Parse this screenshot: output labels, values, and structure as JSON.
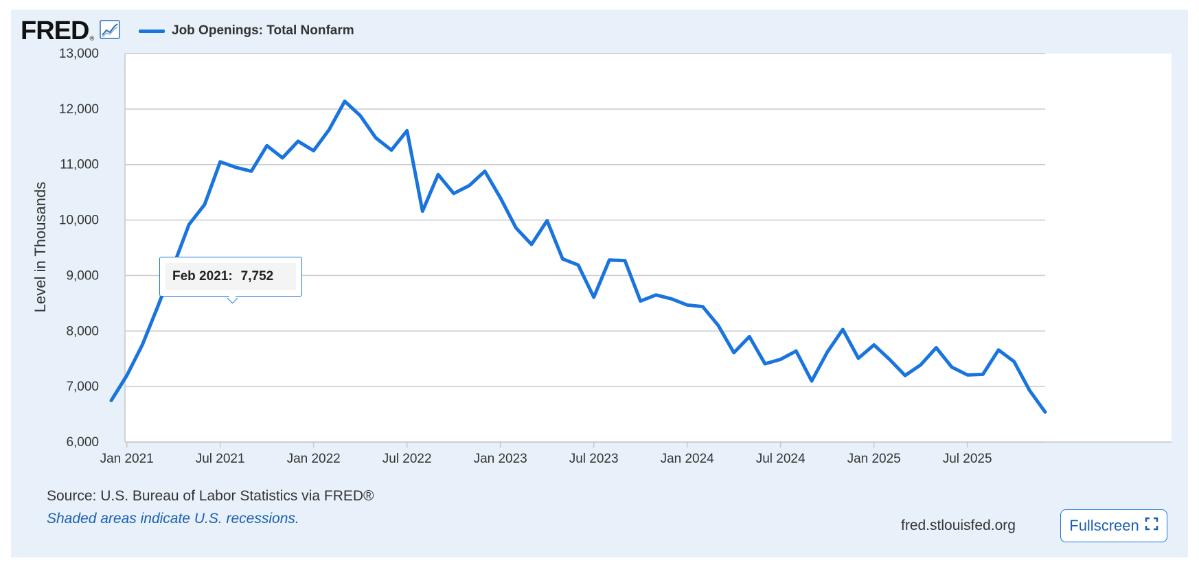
{
  "header": {
    "logo_text": "FRED",
    "logo_reg": "®",
    "legend_label": "Job Openings: Total Nonfarm"
  },
  "colors": {
    "series": "#1a74dd",
    "panel": "#e8f1f9",
    "grid": "#c8c8c8"
  },
  "icons": {
    "logo": "chart-line-icon",
    "fullscreen": "expand-icon"
  },
  "tooltip": {
    "label": "Feb 2021:",
    "value": "7,752"
  },
  "footer": {
    "source": "Source: U.S. Bureau of Labor Statistics via FRED®",
    "recession_note": "Shaded areas indicate U.S. recessions.",
    "site": "fred.stlouisfed.org",
    "fullscreen_label": "Fullscreen"
  },
  "chart_data": {
    "type": "line",
    "ylabel": "Level in Thousands",
    "ylim": [
      6000,
      13000
    ],
    "yticks": [
      6000,
      7000,
      8000,
      9000,
      10000,
      11000,
      12000,
      13000
    ],
    "ytick_labels": [
      "6,000",
      "7,000",
      "8,000",
      "9,000",
      "10,000",
      "11,000",
      "12,000",
      "13,000"
    ],
    "xlim": [
      "2020-12",
      "2025-12"
    ],
    "xticks": [
      "2021-01",
      "2021-07",
      "2022-01",
      "2022-07",
      "2023-01",
      "2023-07",
      "2024-01",
      "2024-07",
      "2025-01",
      "2025-07"
    ],
    "xtick_labels": [
      "Jan 2021",
      "Jul 2021",
      "Jan 2022",
      "Jul 2022",
      "Jan 2023",
      "Jul 2023",
      "Jan 2024",
      "Jul 2024",
      "Jan 2025",
      "Jul 2025"
    ],
    "grid": true,
    "series": [
      {
        "name": "Job Openings: Total Nonfarm",
        "x": [
          "2020-12",
          "2021-01",
          "2021-02",
          "2021-03",
          "2021-04",
          "2021-05",
          "2021-06",
          "2021-07",
          "2021-08",
          "2021-09",
          "2021-10",
          "2021-11",
          "2021-12",
          "2022-01",
          "2022-02",
          "2022-03",
          "2022-04",
          "2022-05",
          "2022-06",
          "2022-07",
          "2022-08",
          "2022-09",
          "2022-10",
          "2022-11",
          "2022-12",
          "2023-01",
          "2023-02",
          "2023-03",
          "2023-04",
          "2023-05",
          "2023-06",
          "2023-07",
          "2023-08",
          "2023-09",
          "2023-10",
          "2023-11",
          "2023-12",
          "2024-01",
          "2024-02",
          "2024-03",
          "2024-04",
          "2024-05",
          "2024-06",
          "2024-07",
          "2024-08",
          "2024-09",
          "2024-10",
          "2024-11",
          "2024-12",
          "2025-01",
          "2025-02",
          "2025-03",
          "2025-04",
          "2025-05",
          "2025-06",
          "2025-07",
          "2025-08",
          "2025-09",
          "2025-10",
          "2025-11",
          "2025-12"
        ],
        "values": [
          6750,
          7200,
          7752,
          8450,
          9180,
          9920,
          10280,
          11050,
          10950,
          10880,
          11340,
          11120,
          11420,
          11250,
          11630,
          12140,
          11880,
          11480,
          11260,
          11610,
          10160,
          10820,
          10480,
          10620,
          10880,
          10400,
          9860,
          9560,
          9990,
          9300,
          9190,
          8610,
          9280,
          9270,
          8540,
          8650,
          8580,
          8470,
          8440,
          8100,
          7610,
          7900,
          7410,
          7490,
          7640,
          7100,
          7620,
          8030,
          7510,
          7750,
          7490,
          7200,
          7390,
          7700,
          7350,
          7210,
          7220,
          7660,
          7450,
          6930,
          6540
        ]
      }
    ]
  }
}
